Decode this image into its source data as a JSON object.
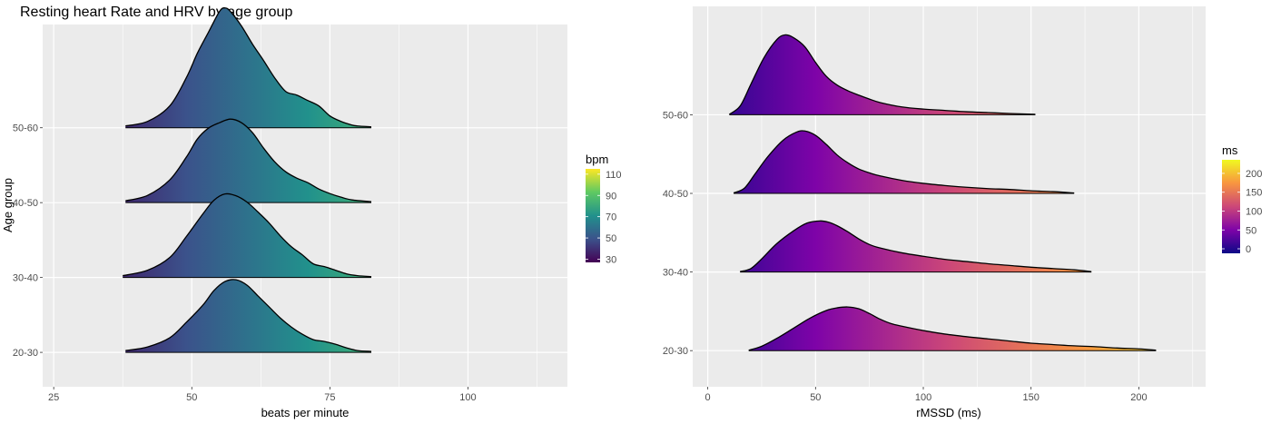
{
  "title": "Resting heart Rate and HRV by age group",
  "chart_data": [
    {
      "type": "ridgeline",
      "ylabel": "Age group",
      "xlabel": "beats per minute",
      "categories": [
        "20-30",
        "30-40",
        "40-50",
        "50-60"
      ],
      "xlim": [
        23,
        118
      ],
      "xticks": [
        25,
        50,
        75,
        100
      ],
      "grid": true,
      "legend": {
        "title": "bpm",
        "position": "right",
        "range": [
          27,
          115
        ],
        "ticks": [
          30,
          50,
          70,
          90,
          110
        ],
        "palette": "viridis",
        "colors": [
          "#440154",
          "#3b528b",
          "#21918c",
          "#5ec962",
          "#fde725"
        ]
      },
      "series": [
        {
          "name": "20-30",
          "x": [
            38,
            42,
            46,
            49,
            52,
            54,
            56,
            58,
            60,
            62,
            64,
            66,
            68,
            70,
            72,
            74,
            76,
            78,
            80,
            82.5
          ],
          "density": [
            0.02,
            0.06,
            0.16,
            0.33,
            0.52,
            0.68,
            0.78,
            0.8,
            0.74,
            0.62,
            0.5,
            0.38,
            0.28,
            0.2,
            0.14,
            0.12,
            0.09,
            0.05,
            0.02,
            0.01
          ]
        },
        {
          "name": "30-40",
          "x": [
            37.5,
            42,
            46,
            49,
            52,
            54,
            56,
            58,
            60,
            62,
            64,
            66,
            68,
            70,
            72,
            74,
            76,
            78,
            80,
            82.5
          ],
          "density": [
            0.02,
            0.08,
            0.22,
            0.45,
            0.7,
            0.85,
            0.92,
            0.9,
            0.83,
            0.72,
            0.6,
            0.46,
            0.34,
            0.25,
            0.15,
            0.12,
            0.08,
            0.04,
            0.02,
            0.01
          ]
        },
        {
          "name": "40-50",
          "x": [
            38,
            42,
            46,
            49,
            51,
            53,
            55,
            57,
            59,
            61,
            63,
            65,
            67,
            69,
            71,
            73,
            75,
            77,
            79,
            82.5
          ],
          "density": [
            0.02,
            0.08,
            0.25,
            0.5,
            0.7,
            0.82,
            0.88,
            0.92,
            0.88,
            0.77,
            0.6,
            0.45,
            0.34,
            0.27,
            0.22,
            0.15,
            0.1,
            0.06,
            0.03,
            0.01
          ]
        },
        {
          "name": "50-60",
          "x": [
            38,
            42,
            46,
            49,
            51,
            53,
            55,
            56,
            57,
            59,
            61,
            63,
            65,
            67,
            69,
            71,
            73,
            75,
            77,
            79,
            80,
            82.5
          ],
          "density": [
            0.02,
            0.07,
            0.24,
            0.55,
            0.82,
            1.05,
            1.28,
            1.32,
            1.28,
            1.12,
            0.92,
            0.74,
            0.55,
            0.4,
            0.36,
            0.3,
            0.24,
            0.13,
            0.07,
            0.03,
            0.02,
            0.01
          ]
        }
      ]
    },
    {
      "type": "ridgeline",
      "ylabel": "",
      "xlabel": "rMSSD (ms)",
      "categories": [
        "20-30",
        "30-40",
        "40-50",
        "50-60"
      ],
      "xlim": [
        -7,
        231
      ],
      "xticks": [
        0,
        50,
        100,
        150,
        200
      ],
      "grid": true,
      "legend": {
        "title": "ms",
        "position": "right",
        "range": [
          -12,
          236
        ],
        "ticks": [
          0,
          50,
          100,
          150,
          200
        ],
        "palette": "plasma",
        "colors": [
          "#0d0887",
          "#7e03a8",
          "#cc4778",
          "#f89540",
          "#f0f921"
        ]
      },
      "series": [
        {
          "name": "20-30",
          "x": [
            19,
            25,
            32,
            40,
            48,
            55,
            60,
            65,
            70,
            75,
            80,
            85,
            90,
            100,
            110,
            120,
            130,
            140,
            150,
            160,
            170,
            180,
            190,
            200,
            208
          ],
          "density": [
            0.01,
            0.1,
            0.28,
            0.52,
            0.76,
            0.92,
            0.98,
            1.0,
            0.96,
            0.85,
            0.72,
            0.62,
            0.56,
            0.46,
            0.38,
            0.32,
            0.27,
            0.22,
            0.17,
            0.14,
            0.11,
            0.09,
            0.06,
            0.04,
            0.01
          ]
        },
        {
          "name": "30-40",
          "x": [
            15,
            20,
            25,
            32,
            40,
            46,
            52,
            56,
            60,
            65,
            70,
            75,
            80,
            90,
            100,
            110,
            120,
            130,
            140,
            150,
            160,
            170,
            178
          ],
          "density": [
            0.01,
            0.08,
            0.3,
            0.65,
            0.95,
            1.12,
            1.17,
            1.14,
            1.06,
            0.92,
            0.76,
            0.63,
            0.55,
            0.44,
            0.36,
            0.29,
            0.24,
            0.19,
            0.15,
            0.11,
            0.08,
            0.05,
            0.01
          ]
        },
        {
          "name": "40-50",
          "x": [
            12,
            17,
            22,
            28,
            35,
            41,
            45,
            50,
            55,
            60,
            65,
            70,
            75,
            80,
            90,
            100,
            110,
            120,
            130,
            140,
            150,
            160,
            170
          ],
          "density": [
            0.01,
            0.12,
            0.45,
            0.85,
            1.22,
            1.4,
            1.43,
            1.33,
            1.12,
            0.88,
            0.7,
            0.56,
            0.47,
            0.4,
            0.3,
            0.23,
            0.18,
            0.14,
            0.11,
            0.09,
            0.06,
            0.04,
            0.01
          ]
        },
        {
          "name": "50-60",
          "x": [
            10,
            15,
            20,
            26,
            32,
            36,
            40,
            45,
            50,
            55,
            60,
            65,
            70,
            75,
            80,
            90,
            100,
            110,
            120,
            130,
            140,
            152
          ],
          "density": [
            0.01,
            0.2,
            0.7,
            1.3,
            1.72,
            1.83,
            1.76,
            1.56,
            1.2,
            0.88,
            0.68,
            0.55,
            0.45,
            0.36,
            0.28,
            0.18,
            0.13,
            0.1,
            0.07,
            0.05,
            0.03,
            0.01
          ]
        }
      ]
    }
  ]
}
